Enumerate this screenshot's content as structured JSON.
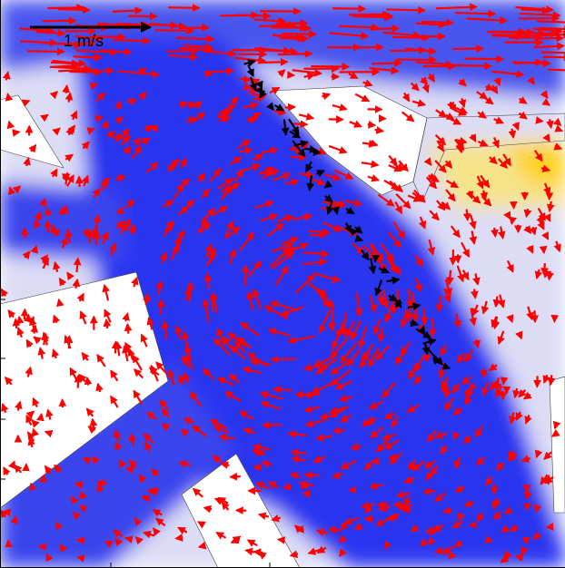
{
  "scale_label": "1 m/s"
}
